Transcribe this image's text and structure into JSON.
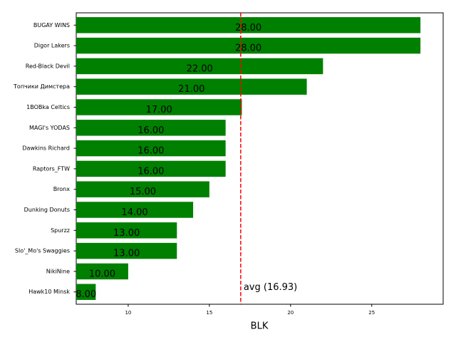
{
  "chart_data": {
    "type": "barh",
    "xlabel": "BLK",
    "categories": [
      "BUGAY WINS",
      "Digor Lakers",
      "Red-Black Devil",
      "Топчики Димстера",
      "1BOBka Celtics",
      "MAGI's YODAS",
      "Dawkins Richard",
      "Raptors_FTW",
      "Bronx",
      "Dunking Donuts",
      "Spurzz",
      "Slo'_Mo's Swaggies",
      "NikiNine",
      "Hawk10 Minsk"
    ],
    "values": [
      28,
      28,
      22,
      21,
      17,
      16,
      16,
      16,
      15,
      14,
      13,
      13,
      10,
      8
    ],
    "value_labels": [
      "28.00",
      "28.00",
      "22.00",
      "21.00",
      "17.00",
      "16.00",
      "16.00",
      "16.00",
      "15.00",
      "14.00",
      "13.00",
      "13.00",
      "10.00",
      "8.00"
    ],
    "color": "#008000",
    "xlim": [
      6.8,
      29.4
    ],
    "xticks": [
      10,
      15,
      20,
      25
    ],
    "avg_line": {
      "value": 16.93,
      "label": "avg (16.93)",
      "color": "#ff0000"
    }
  }
}
